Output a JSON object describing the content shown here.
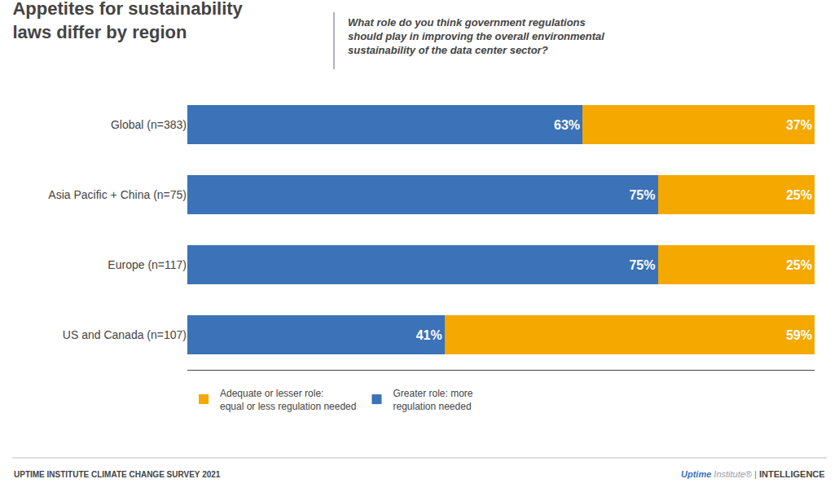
{
  "chart_data": {
    "type": "bar",
    "orientation": "horizontal",
    "stacked": true,
    "title": "Appetites for sustainability\nlaws differ by region",
    "subtitle": "What role do you think government regulations\nshould play in improving the overall environmental\nsustainability of the data center sector?",
    "categories": [
      "Global (n=383)",
      "Asia Pacific + China (n=75)",
      "Europe (n=117)",
      "US and Canada (n=107)"
    ],
    "series": [
      {
        "name": "Greater role: more\nregulation needed",
        "color": "#3B72B8",
        "values": [
          63,
          75,
          75,
          41
        ],
        "value_labels": [
          "63%",
          "75%",
          "75%",
          "41%"
        ]
      },
      {
        "name": "Adequate or lesser role:\nequal or less regulation needed",
        "color": "#F5A800",
        "values": [
          37,
          25,
          25,
          59
        ],
        "value_labels": [
          "37%",
          "25%",
          "25%",
          "59%"
        ]
      }
    ],
    "xlim": [
      0,
      100
    ],
    "grid": false,
    "legend": "bottom",
    "data_labels": true,
    "tick_labels": "y",
    "annotations": [
      "UPTIME INSTITUTE CLIMATE CHANGE SURVEY 2021",
      "Uptime",
      "Institute",
      "®",
      "|",
      "INTELLIGENCE"
    ]
  }
}
